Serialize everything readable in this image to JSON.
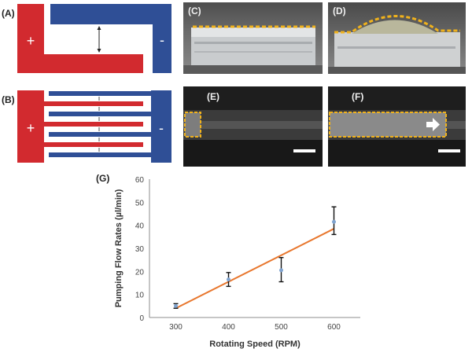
{
  "panels": {
    "a": {
      "label": "(A)",
      "plus": "+",
      "minus": "-"
    },
    "b": {
      "label": "(B)",
      "plus": "+",
      "minus": "-"
    },
    "c": {
      "label": "(C)"
    },
    "d": {
      "label": "(D)"
    },
    "e": {
      "label": "(E)"
    },
    "f": {
      "label": "(F)"
    },
    "g": {
      "label": "(G)"
    }
  },
  "colors": {
    "positive_electrode": "#d22a2f",
    "negative_electrode": "#2f4f96",
    "fit_line": "#e8772e",
    "marker": "#7fa3cf",
    "highlight": "#f0b21c"
  },
  "chart_data": {
    "type": "scatter",
    "title": "",
    "xlabel": "Rotating Speed (RPM)",
    "ylabel": "Pumping Flow Rates (µl/min)",
    "xlim": [
      250,
      650
    ],
    "ylim": [
      0,
      60
    ],
    "xticks": [
      300,
      400,
      500,
      600
    ],
    "yticks": [
      0,
      10,
      20,
      30,
      40,
      50,
      60
    ],
    "x": [
      300,
      400,
      500,
      600
    ],
    "y": [
      5.0,
      16.5,
      20.5,
      41.5
    ],
    "yerr_low": [
      4.0,
      13.5,
      15.5,
      36.0
    ],
    "yerr_high": [
      6.0,
      19.5,
      26.0,
      48.0
    ],
    "fit_line": {
      "x": [
        300,
        600
      ],
      "y": [
        4.0,
        38.5
      ]
    },
    "grid": false,
    "legend": "none"
  }
}
